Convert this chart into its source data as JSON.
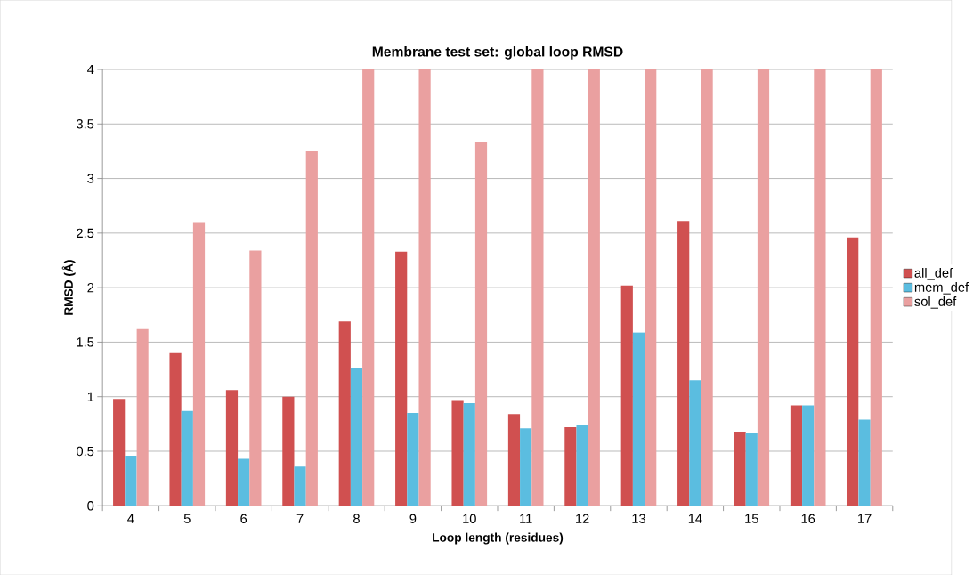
{
  "chart_data": {
    "type": "bar",
    "title": "Membrane test set: global loop RMSD",
    "xlabel": "Loop length (residues)",
    "ylabel": "RMSD (Å)",
    "categories": [
      "4",
      "5",
      "6",
      "7",
      "8",
      "9",
      "10",
      "11",
      "12",
      "13",
      "14",
      "15",
      "16",
      "17"
    ],
    "series": [
      {
        "name": "all_def",
        "color": "#d05050",
        "values": [
          0.98,
          1.4,
          1.06,
          1.0,
          1.69,
          2.33,
          0.97,
          0.84,
          0.72,
          2.02,
          2.61,
          0.68,
          0.92,
          2.46
        ]
      },
      {
        "name": "mem_def",
        "color": "#5bbde0",
        "values": [
          0.46,
          0.87,
          0.43,
          0.36,
          1.26,
          0.85,
          0.94,
          0.71,
          0.74,
          1.59,
          1.15,
          0.67,
          0.92,
          0.79
        ]
      },
      {
        "name": "sol_def",
        "color": "#eaa0a0",
        "values": [
          1.62,
          2.6,
          2.34,
          3.25,
          4,
          4,
          3.33,
          4,
          4,
          4,
          4,
          4,
          4,
          4
        ]
      }
    ],
    "ylim": [
      0,
      4
    ],
    "yticks": [
      0,
      0.5,
      1,
      1.5,
      2,
      2.5,
      3,
      3.5,
      4
    ],
    "grid": "y",
    "legend": "right"
  }
}
